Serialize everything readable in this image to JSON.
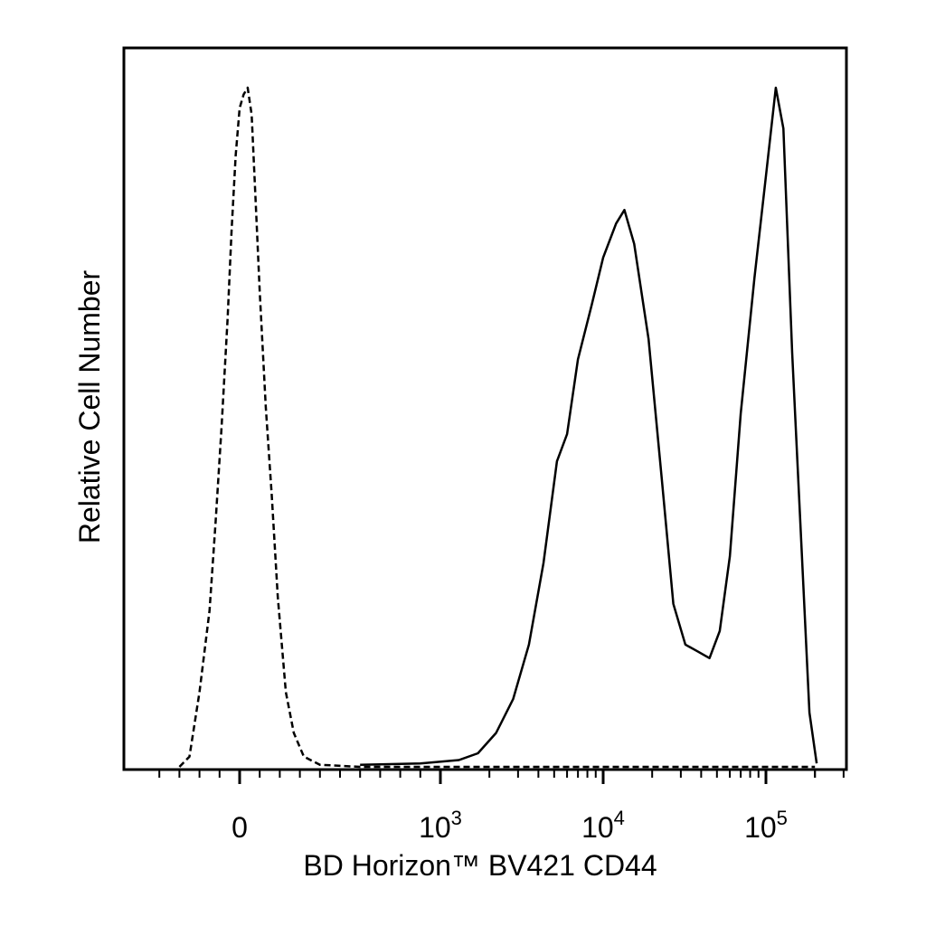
{
  "chart_data": {
    "type": "area",
    "xlabel": "BD Horizon™ BV421 CD44",
    "ylabel": "Relative Cell Number",
    "x_scale": "biexponential",
    "x_tick_labels": [
      {
        "value": 0,
        "base": "0",
        "exp": ""
      },
      {
        "value": 1000,
        "base": "10",
        "exp": "3"
      },
      {
        "value": 10000,
        "base": "10",
        "exp": "4"
      },
      {
        "value": 100000,
        "base": "10",
        "exp": "5"
      }
    ],
    "y_range": [
      0,
      100
    ],
    "grid": false,
    "legend": "none",
    "series": [
      {
        "line_style": "dashed",
        "points": [
          [
            -300,
            0
          ],
          [
            -250,
            1.5
          ],
          [
            -200,
            11
          ],
          [
            -150,
            23
          ],
          [
            -120,
            36
          ],
          [
            -90,
            50
          ],
          [
            -60,
            66
          ],
          [
            -40,
            79
          ],
          [
            -20,
            90
          ],
          [
            0,
            97
          ],
          [
            20,
            99
          ],
          [
            40,
            100
          ],
          [
            60,
            96
          ],
          [
            80,
            83
          ],
          [
            100,
            70
          ],
          [
            130,
            53
          ],
          [
            160,
            40
          ],
          [
            190,
            25
          ],
          [
            230,
            11
          ],
          [
            270,
            5
          ],
          [
            320,
            1.5
          ],
          [
            400,
            0.3
          ],
          [
            600,
            0
          ],
          [
            1000,
            0
          ],
          [
            3000,
            0
          ],
          [
            30000,
            0
          ],
          [
            200000,
            0
          ]
        ]
      },
      {
        "line_style": "solid",
        "points": [
          [
            600,
            0.3
          ],
          [
            900,
            0.5
          ],
          [
            1300,
            1
          ],
          [
            1700,
            2
          ],
          [
            2200,
            5
          ],
          [
            2800,
            10
          ],
          [
            3500,
            18
          ],
          [
            4300,
            30
          ],
          [
            5200,
            45
          ],
          [
            6000,
            49
          ],
          [
            7000,
            60
          ],
          [
            8500,
            68
          ],
          [
            10000,
            75
          ],
          [
            12000,
            80
          ],
          [
            13500,
            82
          ],
          [
            15500,
            77
          ],
          [
            19000,
            63
          ],
          [
            23000,
            42
          ],
          [
            27000,
            24
          ],
          [
            32000,
            18
          ],
          [
            38000,
            17
          ],
          [
            45000,
            16
          ],
          [
            52000,
            20
          ],
          [
            60000,
            31
          ],
          [
            70000,
            52
          ],
          [
            85000,
            72
          ],
          [
            100000,
            87
          ],
          [
            115000,
            100
          ],
          [
            128000,
            94
          ],
          [
            145000,
            61
          ],
          [
            165000,
            33
          ],
          [
            185000,
            8
          ],
          [
            205000,
            0.5
          ]
        ]
      }
    ]
  }
}
